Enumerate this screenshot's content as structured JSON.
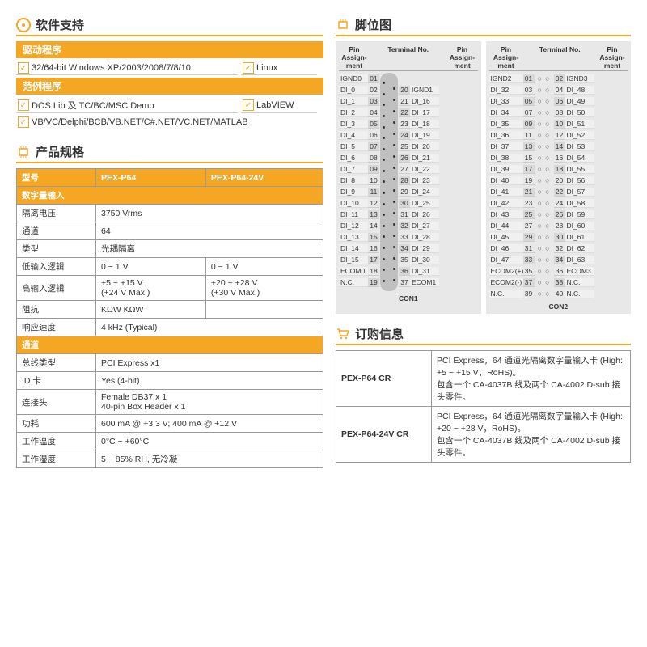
{
  "colors": {
    "accent": "#f5a623",
    "text": "#333333",
    "bg": "#ffffff",
    "border": "#999999",
    "pin_bg": "#e8e8e8"
  },
  "software": {
    "title": "软件支持",
    "drivers": {
      "label": "驱动程序",
      "items": [
        "32/64-bit Windows XP/2003/2008/7/8/10",
        "Linux"
      ]
    },
    "demos": {
      "label": "范例程序",
      "items": [
        "DOS Lib 及 TC/BC/MSC Demo",
        "LabVIEW",
        "VB/VC/Delphi/BCB/VB.NET/C#.NET/VC.NET/MATLAB"
      ]
    }
  },
  "specs": {
    "title": "产品规格",
    "header": {
      "model_label": "型号",
      "model1": "PEX-P64",
      "model2": "PEX-P64-24V"
    },
    "di_label": "数字量输入",
    "rows": [
      {
        "label": "隔离电压",
        "v": "3750 Vrms",
        "span": 2
      },
      {
        "label": "通道",
        "v": "64",
        "span": 2
      },
      {
        "label": "类型",
        "v": "光耦隔离",
        "span": 2
      },
      {
        "label": "低输入逻辑",
        "v1": "0 ~ 1 V",
        "v2": "0 ~ 1 V"
      },
      {
        "label": "高输入逻辑",
        "v1": "+5 ~ +15 V\n(+24 V Max.)",
        "v2": "+20 ~ +28 V\n(+30 V Max.)"
      },
      {
        "label": "阻抗",
        "v1": "KΩW      KΩW",
        "v2": ""
      },
      {
        "label": "响应速度",
        "v": "4 kHz (Typical)",
        "span": 2
      }
    ],
    "general_label": "通道",
    "general": [
      {
        "label": "总线类型",
        "v": "PCI Express x1"
      },
      {
        "label": "ID 卡",
        "v": "Yes (4-bit)"
      },
      {
        "label": "连接头",
        "v": "Female DB37 x 1\n40-pin Box Header x 1"
      },
      {
        "label": "功耗",
        "v": "600 mA @ +3.3 V; 400 mA @ +12 V"
      },
      {
        "label": "工作温度",
        "v": "0°C ~ +60°C"
      },
      {
        "label": "工作湿度",
        "v": "5 ~ 85% RH, 无冷凝"
      }
    ]
  },
  "pinout": {
    "title": "脚位图",
    "col_assign": "Pin Assign-ment",
    "col_term": "Terminal No.",
    "con1": {
      "name": "CON1",
      "left": [
        {
          "l": "IGND0",
          "n": "01"
        },
        {
          "l": "DI_0",
          "n": "02"
        },
        {
          "l": "DI_1",
          "n": "03"
        },
        {
          "l": "DI_2",
          "n": "04"
        },
        {
          "l": "DI_3",
          "n": "05"
        },
        {
          "l": "DI_4",
          "n": "06"
        },
        {
          "l": "DI_5",
          "n": "07"
        },
        {
          "l": "DI_6",
          "n": "08"
        },
        {
          "l": "DI_7",
          "n": "09"
        },
        {
          "l": "DI_8",
          "n": "10"
        },
        {
          "l": "DI_9",
          "n": "11"
        },
        {
          "l": "DI_10",
          "n": "12"
        },
        {
          "l": "DI_11",
          "n": "13"
        },
        {
          "l": "DI_12",
          "n": "14"
        },
        {
          "l": "DI_13",
          "n": "15"
        },
        {
          "l": "DI_14",
          "n": "16"
        },
        {
          "l": "DI_15",
          "n": "17"
        },
        {
          "l": "ECOM0",
          "n": "18"
        },
        {
          "l": "N.C.",
          "n": "19"
        }
      ],
      "right": [
        {
          "n": "20",
          "l": "IGND1"
        },
        {
          "n": "21",
          "l": "DI_16"
        },
        {
          "n": "22",
          "l": "DI_17"
        },
        {
          "n": "23",
          "l": "DI_18"
        },
        {
          "n": "24",
          "l": "DI_19"
        },
        {
          "n": "25",
          "l": "DI_20"
        },
        {
          "n": "26",
          "l": "DI_21"
        },
        {
          "n": "27",
          "l": "DI_22"
        },
        {
          "n": "28",
          "l": "DI_23"
        },
        {
          "n": "29",
          "l": "DI_24"
        },
        {
          "n": "30",
          "l": "DI_25"
        },
        {
          "n": "31",
          "l": "DI_26"
        },
        {
          "n": "32",
          "l": "DI_27"
        },
        {
          "n": "33",
          "l": "DI_28"
        },
        {
          "n": "34",
          "l": "DI_29"
        },
        {
          "n": "35",
          "l": "DI_30"
        },
        {
          "n": "36",
          "l": "DI_31"
        },
        {
          "n": "37",
          "l": "ECOM1"
        }
      ]
    },
    "con2": {
      "name": "CON2",
      "rows": [
        {
          "ll": "IGND2",
          "ln": "01",
          "rn": "02",
          "rl": "IGND3"
        },
        {
          "ll": "DI_32",
          "ln": "03",
          "rn": "04",
          "rl": "DI_48"
        },
        {
          "ll": "DI_33",
          "ln": "05",
          "rn": "06",
          "rl": "DI_49"
        },
        {
          "ll": "DI_34",
          "ln": "07",
          "rn": "08",
          "rl": "DI_50"
        },
        {
          "ll": "DI_35",
          "ln": "09",
          "rn": "10",
          "rl": "DI_51"
        },
        {
          "ll": "DI_36",
          "ln": "11",
          "rn": "12",
          "rl": "DI_52"
        },
        {
          "ll": "DI_37",
          "ln": "13",
          "rn": "14",
          "rl": "DI_53"
        },
        {
          "ll": "DI_38",
          "ln": "15",
          "rn": "16",
          "rl": "DI_54"
        },
        {
          "ll": "DI_39",
          "ln": "17",
          "rn": "18",
          "rl": "DI_55"
        },
        {
          "ll": "DI_40",
          "ln": "19",
          "rn": "20",
          "rl": "DI_56"
        },
        {
          "ll": "DI_41",
          "ln": "21",
          "rn": "22",
          "rl": "DI_57"
        },
        {
          "ll": "DI_42",
          "ln": "23",
          "rn": "24",
          "rl": "DI_58"
        },
        {
          "ll": "DI_43",
          "ln": "25",
          "rn": "26",
          "rl": "DI_59"
        },
        {
          "ll": "DI_44",
          "ln": "27",
          "rn": "28",
          "rl": "DI_60"
        },
        {
          "ll": "DI_45",
          "ln": "29",
          "rn": "30",
          "rl": "DI_61"
        },
        {
          "ll": "DI_46",
          "ln": "31",
          "rn": "32",
          "rl": "DI_62"
        },
        {
          "ll": "DI_47",
          "ln": "33",
          "rn": "34",
          "rl": "DI_63"
        },
        {
          "ll": "ECOM2(+)",
          "ln": "35",
          "rn": "36",
          "rl": "ECOM3"
        },
        {
          "ll": "ECOM2(-)",
          "ln": "37",
          "rn": "38",
          "rl": "N.C."
        },
        {
          "ll": "N.C.",
          "ln": "39",
          "rn": "40",
          "rl": "N.C."
        }
      ]
    }
  },
  "order": {
    "title": "订购信息",
    "items": [
      {
        "model": "PEX-P64 CR",
        "desc": "PCI Express，64 通道光隔离数字量输入卡 (High: +5 ~ +15 V，RoHS)。\n包含一个 CA-4037B 线及两个 CA-4002 D-sub 接头零件。"
      },
      {
        "model": "PEX-P64-24V CR",
        "desc": "PCI Express，64 通道光隔离数字量输入卡 (High: +20 ~ +28 V，RoHS)。\n包含一个 CA-4037B 线及两个 CA-4002 D-sub 接头零件。"
      }
    ]
  }
}
